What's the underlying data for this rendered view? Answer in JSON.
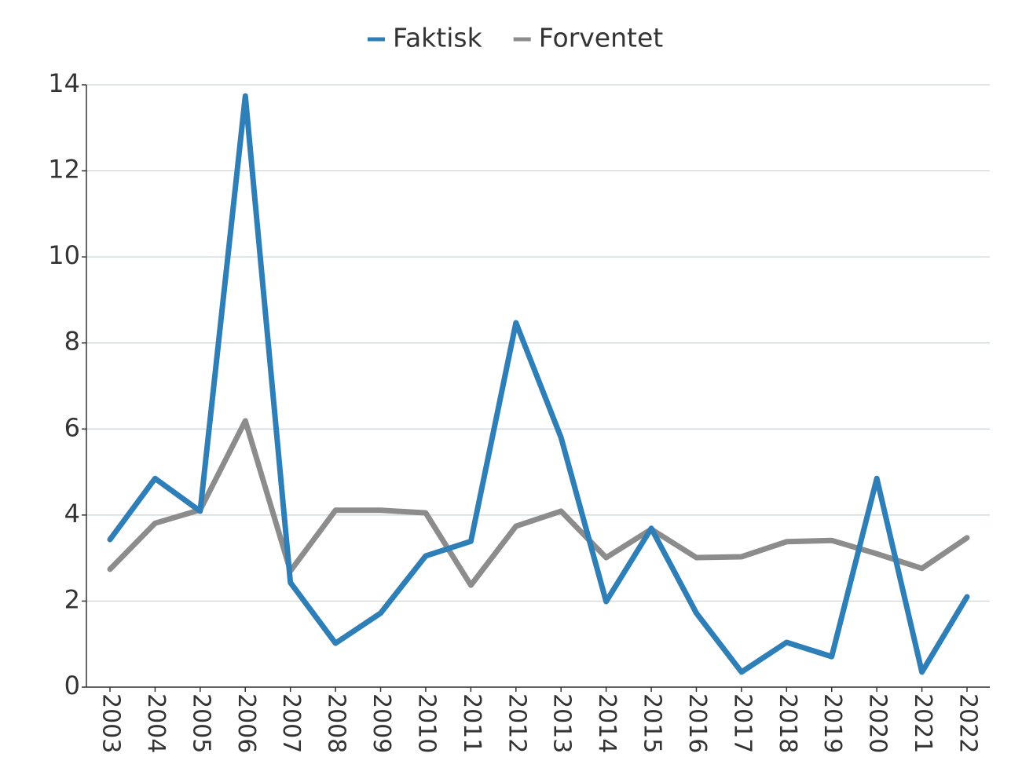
{
  "chart_data": {
    "type": "line",
    "categories": [
      "2003",
      "2004",
      "2005",
      "2006",
      "2007",
      "2008",
      "2009",
      "2010",
      "2011",
      "2012",
      "2013",
      "2014",
      "2015",
      "2016",
      "2017",
      "2018",
      "2019",
      "2020",
      "2021",
      "2022"
    ],
    "series": [
      {
        "name": "Faktisk",
        "color": "#2e7fb8",
        "values": [
          3.43,
          4.85,
          4.09,
          13.74,
          2.43,
          1.02,
          1.72,
          3.05,
          3.39,
          8.47,
          5.8,
          1.99,
          3.69,
          1.72,
          0.35,
          1.04,
          0.71,
          4.85,
          0.35,
          2.1
        ]
      },
      {
        "name": "Forventet",
        "color": "#8c8c8c",
        "values": [
          2.74,
          3.81,
          4.12,
          6.19,
          2.7,
          4.11,
          4.11,
          4.05,
          2.37,
          3.74,
          4.09,
          3.01,
          3.67,
          3.01,
          3.03,
          3.38,
          3.41,
          3.1,
          2.76,
          3.47
        ]
      }
    ],
    "ylim": [
      0,
      14
    ],
    "yticks": [
      0,
      2,
      4,
      6,
      8,
      10,
      12,
      14
    ],
    "grid": true,
    "legend": "top"
  }
}
